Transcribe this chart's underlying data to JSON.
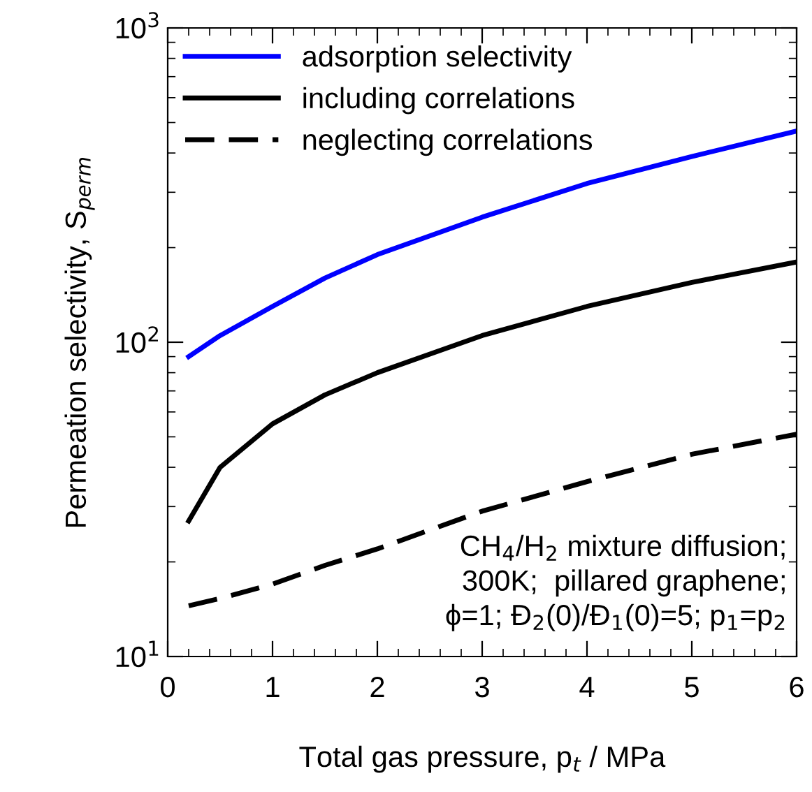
{
  "chart_data": {
    "type": "line",
    "xlabel": "Total gas pressure, p$_{t}$ / MPa",
    "ylabel": "Permeation selectivity, S$_{perm}$",
    "xlim": [
      0,
      6
    ],
    "xticks": [
      0,
      1,
      2,
      3,
      4,
      5,
      6
    ],
    "ylim": [
      10,
      1000
    ],
    "yticks": [
      {
        "value": 10,
        "label": "10$^{1}$"
      },
      {
        "value": 100,
        "label": "10$^{2}$"
      },
      {
        "value": 1000,
        "label": "10$^{3}$"
      }
    ],
    "log": "y",
    "grid": false,
    "legend": "top left",
    "marker": "none",
    "x": [
      0.2,
      0.5,
      1,
      1.5,
      2,
      3,
      4,
      5,
      6
    ],
    "series": [
      {
        "name": "adsorption selectivity",
        "color": "#0000ff",
        "line_style": "solid",
        "values": [
          90,
          105,
          130,
          160,
          190,
          250,
          320,
          390,
          470
        ]
      },
      {
        "name": "including correlations",
        "color": "#000000",
        "line_style": "solid",
        "values": [
          27,
          40,
          55,
          68,
          80,
          105,
          130,
          155,
          180
        ]
      },
      {
        "name": "neglecting correlations",
        "color": "#000000",
        "line_style": "dashed",
        "values": [
          14.5,
          15.3,
          17,
          19.5,
          22,
          29,
          36,
          44,
          51
        ]
      }
    ],
    "annotations": [
      {
        "text": "CH$_{4}$/H$_{2}$ mixture diffusion;\n300K;  pillared graphene;\nϕ=1; Đ$_{2}$(0)/Đ$_{1}$(0)=5; p$_{1}$=p$_{2}$"
      }
    ]
  }
}
